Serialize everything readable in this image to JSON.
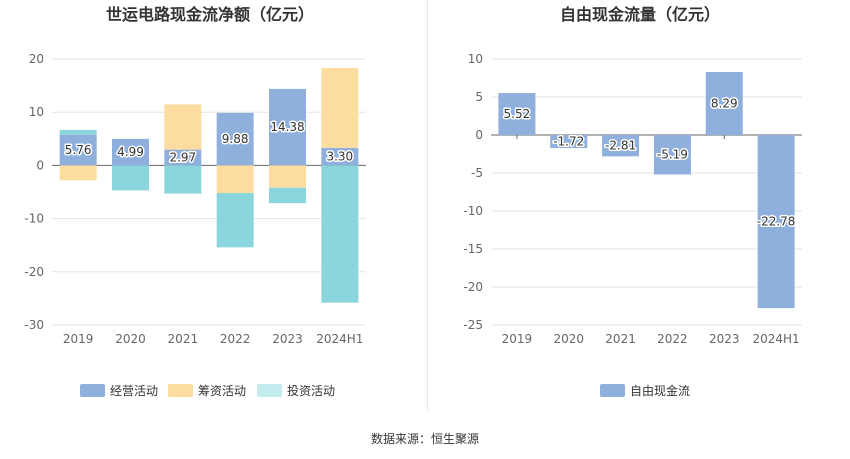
{
  "chart_data": [
    {
      "type": "bar",
      "stacked": true,
      "title": "世运电路现金流净额（亿元）",
      "categories": [
        "2019",
        "2020",
        "2021",
        "2022",
        "2023",
        "2024H1"
      ],
      "ylim": [
        -30,
        20
      ],
      "yticks": [
        20,
        10,
        0,
        -10,
        -20,
        -30
      ],
      "series": [
        {
          "name": "经营活动",
          "color": "#8fb0dd",
          "values": [
            5.76,
            4.99,
            2.97,
            9.88,
            14.38,
            3.3
          ]
        },
        {
          "name": "筹资活动",
          "color": "#fddca0",
          "values": [
            -2.8,
            0,
            8.5,
            -5.2,
            -4.2,
            15.0
          ]
        },
        {
          "name": "投资活动",
          "color": "#8ad6dc",
          "values": [
            0.9,
            -4.7,
            -5.3,
            -10.2,
            -2.9,
            -25.8
          ]
        }
      ],
      "data_labels": [
        "5.76",
        "4.99",
        "2.97",
        "9.88",
        "14.38",
        "3.30"
      ],
      "legend": [
        "经营活动",
        "筹资活动",
        "投资活动"
      ],
      "legend_placement": "bottom"
    },
    {
      "type": "bar",
      "title": "自由现金流量（亿元）",
      "categories": [
        "2019",
        "2020",
        "2021",
        "2022",
        "2023",
        "2024H1"
      ],
      "ylim": [
        -25,
        10
      ],
      "yticks": [
        10,
        5,
        0,
        -5,
        -10,
        -15,
        -20,
        -25
      ],
      "series": [
        {
          "name": "自由现金流",
          "color": "#8fb0dd",
          "values": [
            5.52,
            -1.72,
            -2.81,
            -5.19,
            8.29,
            -22.78
          ]
        }
      ],
      "data_labels": [
        "5.52",
        "-1.72",
        "-2.81",
        "-5.19",
        "8.29",
        "-22.78"
      ],
      "legend": [
        "自由现金流"
      ],
      "legend_placement": "bottom"
    }
  ],
  "footer": "数据来源：恒生聚源"
}
